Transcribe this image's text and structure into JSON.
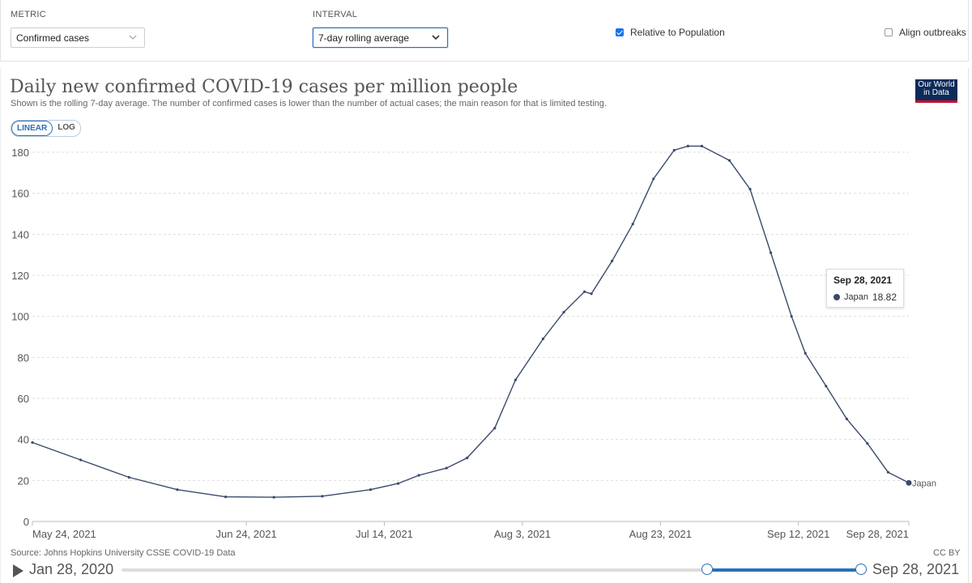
{
  "controls": {
    "metric_label": "METRIC",
    "metric_value": "Confirmed cases",
    "interval_label": "INTERVAL",
    "interval_value": "7-day rolling average",
    "relative_label": "Relative to Population",
    "relative_checked": true,
    "align_label": "Align outbreaks",
    "align_checked": false
  },
  "header": {
    "title": "Daily new confirmed COVID-19 cases per million people",
    "subtitle": "Shown is the rolling 7-day average. The number of confirmed cases is lower than the number of actual cases; the main reason for that is limited testing.",
    "logo_line1": "Our World",
    "logo_line2": "in Data"
  },
  "scale": {
    "linear": "LINEAR",
    "log": "LOG",
    "selected": "LINEAR"
  },
  "tooltip": {
    "date": "Sep 28, 2021",
    "series": "Japan",
    "value": "18.82"
  },
  "footer": {
    "source": "Source: Johns Hopkins University CSSE COVID-19 Data",
    "license": "CC BY"
  },
  "timeline": {
    "start": "Jan 28, 2020",
    "end": "Sep 28, 2021"
  },
  "colors": {
    "line": "#3a4a6b",
    "accent": "#2c6fb7",
    "grid": "#dddddd"
  },
  "chart_data": {
    "type": "line",
    "title": "Daily new confirmed COVID-19 cases per million people",
    "ylim": [
      0,
      180
    ],
    "yticks": [
      0,
      20,
      40,
      60,
      80,
      100,
      120,
      140,
      160,
      180
    ],
    "xlim": [
      "2021-05-24",
      "2021-09-28"
    ],
    "xticks": [
      {
        "date": "2021-05-24",
        "label": "May 24, 2021"
      },
      {
        "date": "2021-06-24",
        "label": "Jun 24, 2021"
      },
      {
        "date": "2021-07-14",
        "label": "Jul 14, 2021"
      },
      {
        "date": "2021-08-03",
        "label": "Aug 3, 2021"
      },
      {
        "date": "2021-08-23",
        "label": "Aug 23, 2021"
      },
      {
        "date": "2021-09-12",
        "label": "Sep 12, 2021"
      },
      {
        "date": "2021-09-28",
        "label": "Sep 28, 2021"
      }
    ],
    "grid": true,
    "series": [
      {
        "name": "Japan",
        "points": [
          {
            "date": "2021-05-24",
            "value": 38.5
          },
          {
            "date": "2021-05-31",
            "value": 30.0
          },
          {
            "date": "2021-06-07",
            "value": 21.5
          },
          {
            "date": "2021-06-14",
            "value": 15.5
          },
          {
            "date": "2021-06-21",
            "value": 12.0
          },
          {
            "date": "2021-06-28",
            "value": 11.8
          },
          {
            "date": "2021-07-05",
            "value": 12.3
          },
          {
            "date": "2021-07-12",
            "value": 15.5
          },
          {
            "date": "2021-07-16",
            "value": 18.5
          },
          {
            "date": "2021-07-19",
            "value": 22.5
          },
          {
            "date": "2021-07-23",
            "value": 26.0
          },
          {
            "date": "2021-07-26",
            "value": 31.0
          },
          {
            "date": "2021-07-30",
            "value": 45.5
          },
          {
            "date": "2021-08-02",
            "value": 69.0
          },
          {
            "date": "2021-08-06",
            "value": 89.0
          },
          {
            "date": "2021-08-09",
            "value": 102.0
          },
          {
            "date": "2021-08-12",
            "value": 112.0
          },
          {
            "date": "2021-08-13",
            "value": 111.0
          },
          {
            "date": "2021-08-16",
            "value": 127.0
          },
          {
            "date": "2021-08-19",
            "value": 145.0
          },
          {
            "date": "2021-08-22",
            "value": 167.0
          },
          {
            "date": "2021-08-25",
            "value": 181.0
          },
          {
            "date": "2021-08-27",
            "value": 183.0
          },
          {
            "date": "2021-08-29",
            "value": 183.0
          },
          {
            "date": "2021-09-02",
            "value": 176.0
          },
          {
            "date": "2021-09-05",
            "value": 162.0
          },
          {
            "date": "2021-09-08",
            "value": 131.0
          },
          {
            "date": "2021-09-11",
            "value": 100.0
          },
          {
            "date": "2021-09-13",
            "value": 82.0
          },
          {
            "date": "2021-09-16",
            "value": 66.0
          },
          {
            "date": "2021-09-19",
            "value": 50.0
          },
          {
            "date": "2021-09-22",
            "value": 38.0
          },
          {
            "date": "2021-09-25",
            "value": 24.0
          },
          {
            "date": "2021-09-28",
            "value": 18.82
          }
        ]
      }
    ]
  }
}
